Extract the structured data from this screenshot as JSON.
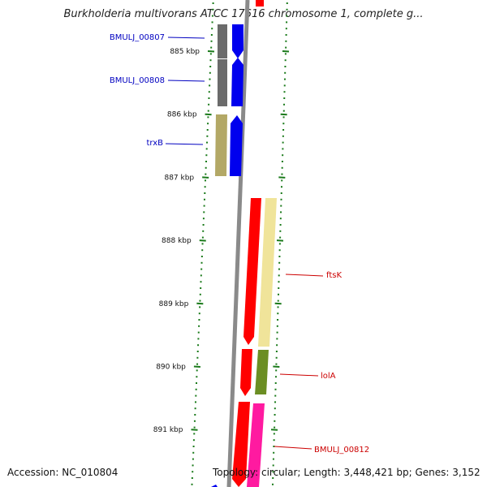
{
  "title": "Burkholderia multivorans ATCC 17616 chromosome 1, complete g...",
  "footer": {
    "accession": "Accession: NC_010804",
    "topology": "Topology: circular; Length: 3,448,421 bp; Genes: 3,152"
  },
  "colors": {
    "backbone": "#8a8a8a",
    "ticks": "#1a7a1a",
    "reverse_label": "#0000c0",
    "forward_label": "#cc0000"
  },
  "ticks": [
    {
      "label": "885 kbp",
      "kbp": 885
    },
    {
      "label": "886 kbp",
      "kbp": 886
    },
    {
      "label": "887 kbp",
      "kbp": 887
    },
    {
      "label": "888 kbp",
      "kbp": 888
    },
    {
      "label": "889 kbp",
      "kbp": 889
    },
    {
      "label": "890 kbp",
      "kbp": 890
    },
    {
      "label": "891 kbp",
      "kbp": 891
    }
  ],
  "genes": [
    {
      "name": "BMULJ_00807",
      "strand": "-",
      "color": "#5a5a5a",
      "labeled": true
    },
    {
      "name": "BMULJ_00808",
      "strand": "-",
      "color": "#5a5a5a",
      "labeled": true
    },
    {
      "name": "trxB",
      "strand": "-",
      "color": "#b3a866",
      "labeled": true
    },
    {
      "name": "ftsK",
      "strand": "+",
      "color": "#f0e49a",
      "labeled": true
    },
    {
      "name": "lolA",
      "strand": "+",
      "color": "#6b8e23",
      "labeled": true
    },
    {
      "name": "BMULJ_00812",
      "strand": "+",
      "color": "#ff1aa0",
      "labeled": true
    }
  ]
}
